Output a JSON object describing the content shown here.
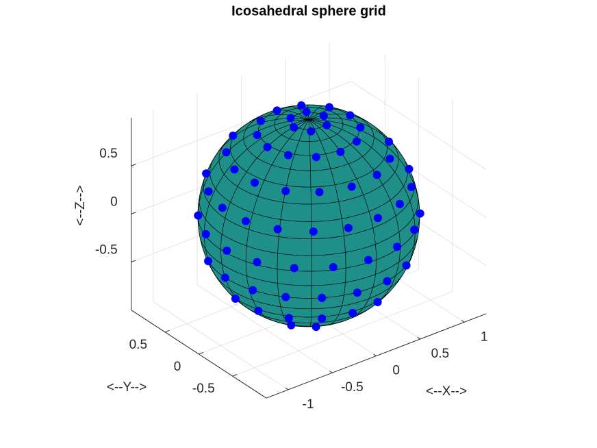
{
  "chart_data": {
    "type": "scatter3",
    "title": "Icosahedral sphere grid",
    "xlabel": "<--X-->",
    "ylabel": "<--Y-->",
    "zlabel": "<--Z-->",
    "xlim": [
      -1.25,
      1.25
    ],
    "ylim": [
      -1,
      1
    ],
    "zlim": [
      -1,
      1
    ],
    "xticks": [
      -1,
      -0.5,
      0,
      0.5,
      1
    ],
    "yticks": [
      -0.5,
      0,
      0.5
    ],
    "zticks": [
      -0.5,
      0,
      0.5
    ],
    "grid": true,
    "color": "#0000ff",
    "surface_color": "#1f8f89",
    "x": [
      0.17,
      0.09,
      -0.09,
      -0.17,
      -0.09,
      0.09,
      0.47,
      0.41,
      0.23,
      0,
      -0.23,
      -0.41,
      -0.47,
      -0.41,
      -0.23,
      0,
      0.23,
      0.41,
      -0.37,
      -0.6,
      -0.73,
      -0.73,
      -0.6,
      -0.37,
      -0.08,
      0.23,
      0.5,
      0.68,
      -0.66,
      -0.84,
      -0.92,
      -0.9,
      -0.76,
      -0.53,
      -0.24,
      0.08,
      0.39,
      0.66,
      0.84,
      -0.82,
      -0.97,
      -1,
      -0.91,
      -0.71,
      -0.42,
      -0.09,
      0.26,
      0.57,
      0.79,
      -0.89,
      -0.95,
      -0.89,
      -0.73,
      -0.48,
      -0.17,
      0.17,
      0.48,
      -0.78,
      -0.75,
      -0.61,
      -0.38,
      -0.1,
      0.2,
      -0.43,
      -0.27
    ],
    "y": [
      0,
      0.15,
      0.15,
      0,
      -0.15,
      -0.15,
      0,
      0.23,
      0.41,
      0.47,
      0.41,
      0.23,
      0,
      -0.23,
      -0.41,
      -0.47,
      -0.41,
      -0.23,
      0.64,
      0.44,
      0.15,
      -0.15,
      -0.44,
      -0.64,
      -0.74,
      -0.71,
      -0.55,
      -0.3,
      0.66,
      0.39,
      0.08,
      -0.24,
      -0.53,
      -0.76,
      -0.9,
      -0.92,
      -0.84,
      -0.66,
      -0.39,
      0.57,
      0.26,
      -0.09,
      -0.42,
      -0.71,
      -0.91,
      -1,
      -0.97,
      -0.82,
      -0.62,
      0.33,
      0,
      -0.33,
      -0.61,
      -0.82,
      -0.94,
      -0.94,
      -0.82,
      0.07,
      -0.23,
      -0.5,
      -0.69,
      -0.78,
      -0.76,
      -0.3,
      -0.46
    ],
    "z": [
      0.98,
      0.98,
      0.98,
      0.98,
      0.98,
      0.98,
      0.88,
      0.88,
      0.88,
      0.88,
      0.88,
      0.88,
      0.88,
      0.88,
      0.88,
      0.88,
      0.88,
      0.88,
      0.67,
      0.67,
      0.67,
      0.67,
      0.67,
      0.67,
      0.67,
      0.67,
      0.67,
      0.67,
      0.37,
      0.37,
      0.37,
      0.37,
      0.37,
      0.37,
      0.37,
      0.37,
      0.37,
      0.37,
      0.37,
      0.03,
      0.03,
      0.03,
      0.03,
      0.03,
      0.03,
      0.03,
      0.03,
      0.03,
      0.03,
      -0.31,
      -0.31,
      -0.31,
      -0.31,
      -0.31,
      -0.31,
      -0.31,
      -0.31,
      -0.62,
      -0.62,
      -0.62,
      -0.62,
      -0.62,
      -0.62,
      -0.85,
      -0.85
    ]
  }
}
